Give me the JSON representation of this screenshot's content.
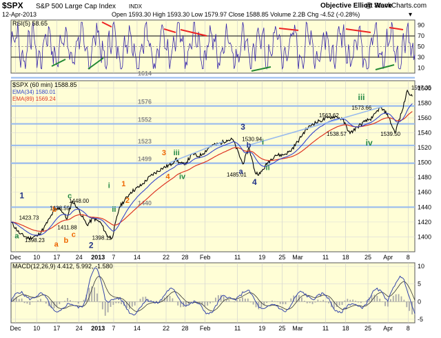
{
  "header": {
    "symbol": "$SPX",
    "name": "S&P 500 Large Cap Index",
    "exchange": "INDX",
    "date": "12-Apr-2013",
    "quote": "Open 1593.30  High 1593.30  Low 1579.97  Close 1588.85  Volume 2.2B  Chg -4.52 (-0.28%)",
    "quote_arrow": "▾",
    "watermark_main": "Objective Elliott Wave",
    "watermark_site": "@ StockCharts.com"
  },
  "colors": {
    "panel_bg": "#fffed6",
    "price": "#000000",
    "ema34": "#3344cc",
    "ema89": "#dd3322",
    "hlines": "#99bbee",
    "rsi": "#3322aa",
    "wave_orange": "#ee6600",
    "wave_dark": "#223388",
    "wave_green": "#228844",
    "macd_hist": "#aaaaaa"
  },
  "chart_data": [
    {
      "type": "line",
      "panel": "rsi",
      "legend": "RSI(5) 58.65",
      "ylim": [
        0,
        100
      ],
      "y_ticks": [
        10,
        30,
        50,
        70,
        90
      ],
      "reference_lines": [
        30,
        50,
        70
      ],
      "note": "oscillator oscillating 10-95"
    },
    {
      "type": "line",
      "panel": "price",
      "legend": [
        "$SPX (60 min) 1588.85",
        "EMA(34) 1580.01",
        "EMA(89) 1569.24"
      ],
      "ylim": [
        1380,
        1610
      ],
      "y_ticks": [
        1400,
        1420,
        1440,
        1460,
        1480,
        1500,
        1520,
        1540,
        1560,
        1580,
        1600
      ],
      "x_ticks": [
        "Dec",
        "10",
        "17",
        "24",
        "2013",
        "7",
        "14",
        "22",
        "28",
        "Feb",
        "11",
        "19",
        "25",
        "Mar",
        "11",
        "18",
        "25",
        "Apr",
        "8"
      ],
      "series": [
        {
          "name": "$SPX (60 min)",
          "x": [
            0.0,
            3.6,
            7.2,
            10.8,
            13.2,
            15.5,
            17.5,
            19.5,
            21.0,
            22.5,
            24.5,
            26.5,
            30.5,
            33.0,
            36.0,
            38.5,
            40.5,
            43.5,
            48.0,
            52.5,
            56.0,
            60.5,
            64.5,
            66.0,
            67.5,
            69.5,
            73.0,
            75.0,
            77.0,
            80.0,
            84.0,
            86.5,
            89.0,
            93.0,
            95.5,
            98.0,
            100.0,
            103.0,
            106.0,
            109.0,
            112.0
          ],
          "y": [
            1420,
            1404,
            1398,
            1402,
            1412,
            1425,
            1436,
            1439,
            1432,
            1424,
            1448,
            1440,
            1416,
            1425,
            1419,
            1402,
            1398,
            1440,
            1460,
            1470,
            1482,
            1492,
            1498,
            1505,
            1500,
            1497,
            1512,
            1508,
            1512,
            1522,
            1526,
            1530,
            1531,
            1498,
            1520,
            1486,
            1485,
            1500,
            1510,
            1510,
            1515
          ]
        },
        {
          "name": "$SPX (60 min) cont.",
          "x": [
            115.0,
            118.0,
            121.0,
            124.0,
            127.0,
            130.0,
            133.0,
            136.0,
            139.0,
            142.0,
            145.0,
            148.0,
            151.0,
            154.0,
            157.0,
            159.0,
            161.0
          ],
          "y": [
            1528,
            1543,
            1552,
            1556,
            1560,
            1562,
            1558,
            1539,
            1548,
            1555,
            1560,
            1574,
            1565,
            1540,
            1570,
            1597,
            1589
          ]
        }
      ],
      "horizontal_levels": [
        {
          "value": 1614,
          "label": "1614"
        },
        {
          "value": 1576,
          "label": "1576"
        },
        {
          "value": 1552,
          "label": "1552"
        },
        {
          "value": 1523,
          "label": "1523"
        },
        {
          "value": 1499,
          "label": "1499"
        },
        {
          "value": 1440,
          "label": "1440"
        }
      ],
      "price_labels": [
        "1423.73",
        "1398.23",
        "1438.59",
        "1448.00",
        "1411.88",
        "1398.11",
        "1530.94",
        "1485.01",
        "1563.62",
        "1573.66",
        "1538.57",
        "1539.50",
        "1597.35"
      ],
      "wave_labels": [
        "1",
        "a",
        "b",
        "c",
        "a",
        "b",
        "c",
        "2",
        "i",
        "ii",
        "1",
        "2",
        "3",
        "iii",
        "4",
        "iv",
        "3",
        "a",
        "b",
        "i",
        "ii",
        "4",
        "iii",
        "iv"
      ]
    },
    {
      "type": "line",
      "panel": "macd",
      "legend": "MACD(12,26,9) 4.412, 5.992, -1.580",
      "ylim": [
        -6,
        11
      ],
      "y_ticks": [
        -5,
        0,
        5,
        10
      ],
      "x_ticks": [
        "Dec",
        "10",
        "17",
        "24",
        "2013",
        "7",
        "14",
        "22",
        "28",
        "Feb",
        "11",
        "19",
        "25",
        "Mar",
        "11",
        "18",
        "25",
        "Apr",
        "8"
      ]
    }
  ]
}
